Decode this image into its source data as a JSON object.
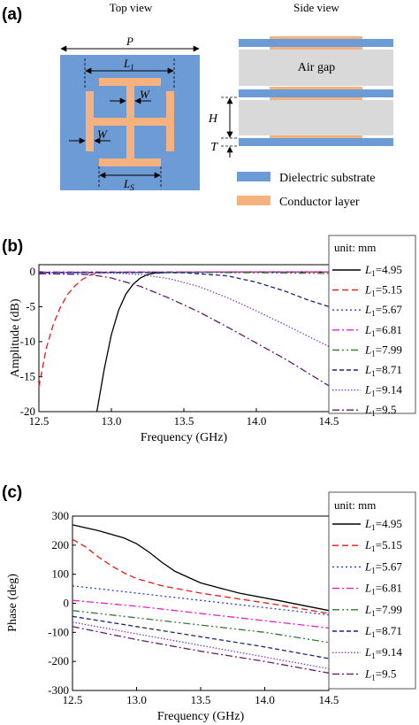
{
  "panel_a": {
    "label": "(a)",
    "top_view_title": "Top view",
    "side_view_title": "Side view",
    "dim_P": "P",
    "dim_L1_main": "L",
    "dim_L1_sub": "1",
    "dim_W": "W",
    "dim_Ls_main": "L",
    "dim_Ls_sub": "S",
    "dim_H": "H",
    "dim_T": "T",
    "air_gap_label": "Air gap",
    "legend": [
      {
        "label": "Dielectric substrate",
        "color": "#6c9bd6"
      },
      {
        "label": "Conductor layer",
        "color": "#f6b27e"
      }
    ],
    "colors": {
      "substrate": "#6c9bd6",
      "conductor": "#f6b27e",
      "air": "#d9d9d9"
    }
  },
  "chart_data": [
    {
      "type": "line",
      "panel": "(b)",
      "xlabel": "Frequency (GHz)",
      "ylabel": "Amplitude (dB)",
      "xlim": [
        12.5,
        14.5
      ],
      "ylim": [
        -20,
        1
      ],
      "xticks": [
        "12.5",
        "13.0",
        "13.5",
        "14.0",
        "14.5"
      ],
      "yticks": [
        "0",
        "-5",
        "-10",
        "-15",
        "-20"
      ],
      "xtick_values": [
        12.5,
        13.0,
        13.5,
        14.0,
        14.5
      ],
      "ytick_values": [
        0,
        -5,
        -10,
        -15,
        -20
      ],
      "legend_title": "unit: mm",
      "series": [
        {
          "name_main": "L",
          "name_sub": "1",
          "name_val": "=4.95",
          "color": "#000000",
          "dash": "",
          "x": [
            12.9,
            12.95,
            13.0,
            13.05,
            13.1,
            13.15,
            13.2,
            13.25,
            13.3,
            13.4,
            13.6,
            14.0,
            14.5
          ],
          "y": [
            -20,
            -14,
            -9,
            -5.5,
            -3.2,
            -1.8,
            -0.9,
            -0.4,
            -0.2,
            -0.1,
            -0.08,
            -0.05,
            -0.05
          ]
        },
        {
          "name_main": "L",
          "name_sub": "1",
          "name_val": "=5.15",
          "color": "#e31a1c",
          "dash": "7,4",
          "x": [
            12.5,
            12.55,
            12.6,
            12.65,
            12.7,
            12.75,
            12.8,
            12.85,
            12.9,
            12.95,
            13.0,
            13.5,
            14.0,
            14.5
          ],
          "y": [
            -16.5,
            -11,
            -7.5,
            -5,
            -3.2,
            -2,
            -1.1,
            -0.5,
            -0.25,
            -0.12,
            -0.08,
            -0.05,
            -0.05,
            -0.05
          ]
        },
        {
          "name_main": "L",
          "name_sub": "1",
          "name_val": "=5.67",
          "color": "#1f3fcf",
          "dash": "2,3",
          "x": [
            12.5,
            13.0,
            13.5,
            14.0,
            14.5
          ],
          "y": [
            -0.12,
            -0.1,
            -0.08,
            -0.07,
            -0.06
          ]
        },
        {
          "name_main": "L",
          "name_sub": "1",
          "name_val": "=6.81",
          "color": "#e020c8",
          "dash": "8,3,2,3",
          "x": [
            12.5,
            13.0,
            13.5,
            14.0,
            14.5
          ],
          "y": [
            -0.05,
            -0.05,
            -0.05,
            -0.05,
            -0.05
          ]
        },
        {
          "name_main": "L",
          "name_sub": "1",
          "name_val": "=7.99",
          "color": "#2e7d32",
          "dash": "8,3,2,3,2,3",
          "x": [
            12.5,
            13.0,
            13.5,
            14.0,
            14.5
          ],
          "y": [
            -0.15,
            -0.12,
            -0.1,
            -0.15,
            -0.25
          ]
        },
        {
          "name_main": "L",
          "name_sub": "1",
          "name_val": "=8.71",
          "color": "#1a237e",
          "dash": "5,3",
          "x": [
            12.5,
            13.0,
            13.5,
            13.8,
            14.0,
            14.2,
            14.35,
            14.5
          ],
          "y": [
            -0.1,
            -0.1,
            -0.15,
            -0.6,
            -1.5,
            -2.8,
            -4.0,
            -5.0
          ]
        },
        {
          "name_main": "L",
          "name_sub": "1",
          "name_val": "=9.14",
          "color": "#7b3fd0",
          "dash": "1.5,2",
          "x": [
            12.5,
            12.8,
            13.0,
            13.2,
            13.4,
            13.6,
            13.8,
            14.0,
            14.2,
            14.5
          ],
          "y": [
            -0.2,
            -0.15,
            -0.2,
            -0.4,
            -1.0,
            -2.1,
            -3.7,
            -5.6,
            -7.6,
            -10.7
          ]
        },
        {
          "name_main": "L",
          "name_sub": "1",
          "name_val": "=9.5",
          "color": "#6a1b6a",
          "dash": "8,3,2,3",
          "x": [
            12.5,
            12.7,
            12.85,
            13.0,
            13.2,
            13.4,
            13.6,
            13.8,
            14.0,
            14.2,
            14.5
          ],
          "y": [
            -0.3,
            -0.35,
            -0.4,
            -0.9,
            -2.1,
            -3.8,
            -5.7,
            -7.9,
            -10.2,
            -12.5,
            -16.3
          ]
        }
      ]
    },
    {
      "type": "line",
      "panel": "(c)",
      "xlabel": "Frequency (GHz)",
      "ylabel": "Phase (deg)",
      "xlim": [
        12.5,
        14.5
      ],
      "ylim": [
        -300,
        300
      ],
      "xticks": [
        "12.5",
        "13.0",
        "13.5",
        "14.0",
        "14.5"
      ],
      "yticks": [
        "300",
        "200",
        "100",
        "0",
        "-100",
        "-200",
        "-300"
      ],
      "xtick_values": [
        12.5,
        13.0,
        13.5,
        14.0,
        14.5
      ],
      "ytick_values": [
        300,
        200,
        100,
        0,
        -100,
        -200,
        -300
      ],
      "legend_title": "unit: mm",
      "series": [
        {
          "name_main": "L",
          "name_sub": "1",
          "name_val": "=4.95",
          "color": "#000000",
          "dash": "",
          "x": [
            12.5,
            12.7,
            12.9,
            13.0,
            13.1,
            13.2,
            13.3,
            13.5,
            13.8,
            14.1,
            14.5
          ],
          "y": [
            270,
            250,
            225,
            205,
            175,
            140,
            110,
            70,
            35,
            10,
            -25
          ]
        },
        {
          "name_main": "L",
          "name_sub": "1",
          "name_val": "=5.15",
          "color": "#e31a1c",
          "dash": "7,4",
          "x": [
            12.5,
            12.6,
            12.7,
            12.8,
            12.9,
            13.0,
            13.2,
            13.5,
            13.8,
            14.1,
            14.5
          ],
          "y": [
            220,
            195,
            160,
            130,
            105,
            85,
            60,
            35,
            15,
            -5,
            -35
          ]
        },
        {
          "name_main": "L",
          "name_sub": "1",
          "name_val": "=5.67",
          "color": "#1f3fcf",
          "dash": "2,3",
          "x": [
            12.5,
            13.0,
            13.5,
            14.0,
            14.5
          ],
          "y": [
            60,
            35,
            10,
            -15,
            -40
          ]
        },
        {
          "name_main": "L",
          "name_sub": "1",
          "name_val": "=6.81",
          "color": "#e020c8",
          "dash": "8,3,2,3",
          "x": [
            12.5,
            13.0,
            13.5,
            14.0,
            14.5
          ],
          "y": [
            10,
            -10,
            -35,
            -60,
            -85
          ]
        },
        {
          "name_main": "L",
          "name_sub": "1",
          "name_val": "=7.99",
          "color": "#2e7d32",
          "dash": "8,3,2,3,2,3",
          "x": [
            12.5,
            13.0,
            13.5,
            14.0,
            14.5
          ],
          "y": [
            -25,
            -50,
            -75,
            -100,
            -135
          ]
        },
        {
          "name_main": "L",
          "name_sub": "1",
          "name_val": "=8.71",
          "color": "#1a237e",
          "dash": "5,3",
          "x": [
            12.5,
            13.0,
            13.5,
            14.0,
            14.5
          ],
          "y": [
            -45,
            -80,
            -115,
            -150,
            -190
          ]
        },
        {
          "name_main": "L",
          "name_sub": "1",
          "name_val": "=9.14",
          "color": "#7b3fd0",
          "dash": "1.5,2",
          "x": [
            12.5,
            13.0,
            13.5,
            14.0,
            14.5
          ],
          "y": [
            -65,
            -105,
            -145,
            -185,
            -225
          ]
        },
        {
          "name_main": "L",
          "name_sub": "1",
          "name_val": "=9.5",
          "color": "#6a1b6a",
          "dash": "8,3,2,3",
          "x": [
            12.5,
            13.0,
            13.5,
            14.0,
            14.5
          ],
          "y": [
            -80,
            -125,
            -165,
            -200,
            -240
          ]
        }
      ]
    }
  ]
}
